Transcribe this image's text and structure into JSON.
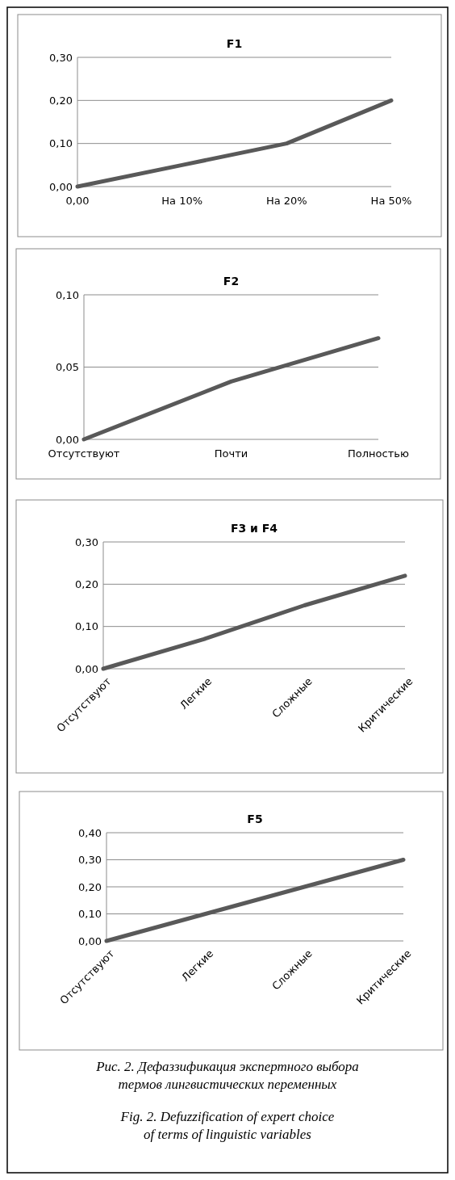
{
  "chart_data": [
    {
      "type": "line",
      "title": "F1",
      "categories": [
        "0,00",
        "На 10%",
        "На 20%",
        "На 50%"
      ],
      "values": [
        0,
        0.05,
        0.1,
        0.2
      ],
      "color": "#595959",
      "ylim": [
        0,
        0.3
      ],
      "yticks": [
        {
          "value": 0,
          "label": "0,00"
        },
        {
          "value": 0.1,
          "label": "0,10"
        },
        {
          "value": 0.2,
          "label": "0,20"
        },
        {
          "value": 0.3,
          "label": "0,30"
        }
      ],
      "grid": "y",
      "marker": "none"
    },
    {
      "type": "line",
      "title": "F2",
      "categories": [
        "Отсутствуют",
        "Почти",
        "Полностью"
      ],
      "values": [
        0,
        0.04,
        0.07
      ],
      "color": "#595959",
      "ylim": [
        0,
        0.1
      ],
      "yticks": [
        {
          "value": 0,
          "label": "0,00"
        },
        {
          "value": 0.05,
          "label": "0,05"
        },
        {
          "value": 0.1,
          "label": "0,10"
        }
      ],
      "grid": "y",
      "marker": "none"
    },
    {
      "type": "line",
      "title": "F3 и F4",
      "categories": [
        "Отсутствуют",
        "Легкие",
        "Сложные",
        "Критические"
      ],
      "values": [
        0,
        0.07,
        0.15,
        0.22
      ],
      "color": "#595959",
      "ylim": [
        0,
        0.3
      ],
      "yticks": [
        {
          "value": 0,
          "label": "0,00"
        },
        {
          "value": 0.1,
          "label": "0,10"
        },
        {
          "value": 0.2,
          "label": "0,20"
        },
        {
          "value": 0.3,
          "label": "0,30"
        }
      ],
      "grid": "y",
      "marker": "none"
    },
    {
      "type": "line",
      "title": "F5",
      "categories": [
        "Отсутствуют",
        "Легкие",
        "Сложные",
        "Критические"
      ],
      "values": [
        0,
        0.1,
        0.2,
        0.3
      ],
      "color": "#595959",
      "ylim": [
        0,
        0.4
      ],
      "yticks": [
        {
          "value": 0,
          "label": "0,00"
        },
        {
          "value": 0.1,
          "label": "0,10"
        },
        {
          "value": 0.2,
          "label": "0,20"
        },
        {
          "value": 0.3,
          "label": "0,30"
        },
        {
          "value": 0.4,
          "label": "0,40"
        }
      ],
      "grid": "y",
      "marker": "none",
      "annotations": [
        "Рис. 2. Дефаззификация экспертного выбора термов лингвистических переменных",
        "Fig. 2. Defuzzification of expert choice of terms of linguistic variables"
      ]
    }
  ]
}
